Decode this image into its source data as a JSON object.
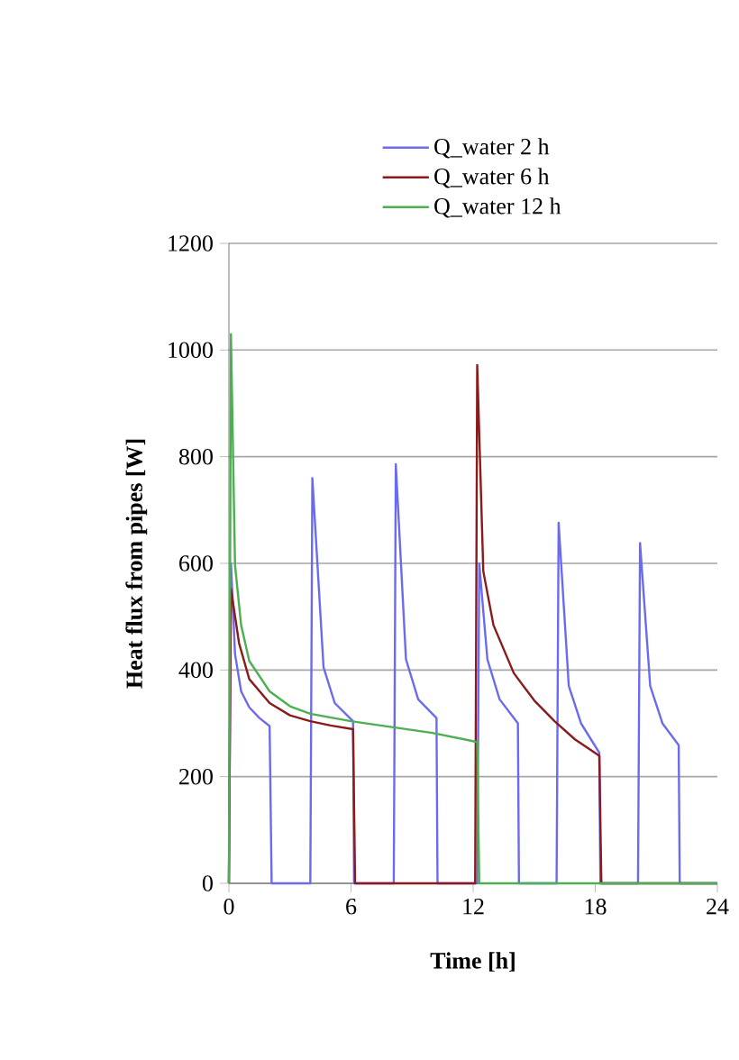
{
  "chart_data": {
    "type": "line",
    "xlabel": "Time [h]",
    "ylabel": "Heat flux from pipes [W]",
    "xlim": [
      0,
      24
    ],
    "ylim": [
      0,
      1200
    ],
    "xticks": [
      0,
      6,
      12,
      18,
      24
    ],
    "yticks": [
      0,
      200,
      400,
      600,
      800,
      1000,
      1200
    ],
    "grid": "y",
    "legend": "top",
    "series": [
      {
        "name": "Q_water 2 h",
        "color": "#6b6bf0",
        "x": [
          0,
          0.1,
          0.3,
          0.6,
          1.0,
          1.5,
          2.0,
          2.1,
          4.0,
          4.1,
          4.65,
          5.2,
          6.1,
          6.15,
          8.1,
          8.2,
          8.7,
          9.3,
          10.2,
          10.25,
          12.2,
          12.3,
          12.7,
          13.3,
          14.2,
          14.25,
          16.1,
          16.2,
          16.7,
          17.3,
          18.2,
          18.25,
          20.1,
          20.2,
          20.7,
          21.3,
          22.1,
          22.15,
          24
        ],
        "values": [
          0,
          600,
          430,
          360,
          330,
          310,
          295,
          0,
          0,
          760,
          405,
          338,
          304,
          0,
          0,
          786,
          420,
          345,
          310,
          0,
          0,
          600,
          420,
          345,
          300,
          0,
          0,
          676,
          370,
          300,
          245,
          0,
          0,
          638,
          370,
          300,
          259,
          0,
          0
        ]
      },
      {
        "name": "Q_water 6 h",
        "color": "#8b1a1a",
        "x": [
          0,
          0.1,
          0.5,
          1,
          2,
          3,
          4,
          5,
          6.1,
          6.2,
          12.1,
          12.2,
          12.5,
          13,
          14,
          15,
          16,
          17,
          18.2,
          18.3,
          24
        ],
        "values": [
          0,
          552,
          450,
          383,
          338,
          315,
          304,
          296,
          289,
          0,
          0,
          972,
          585,
          484,
          394,
          343,
          304,
          270,
          239,
          0,
          0
        ]
      },
      {
        "name": "Q_water 12 h",
        "color": "#4caf50",
        "x": [
          0,
          0.1,
          0.3,
          0.6,
          1,
          2,
          3,
          4,
          6,
          8,
          10,
          12.2,
          12.3,
          24
        ],
        "values": [
          0,
          1030,
          597,
          484,
          417,
          360,
          332,
          318,
          304,
          293,
          282,
          265,
          0,
          0
        ]
      }
    ]
  }
}
